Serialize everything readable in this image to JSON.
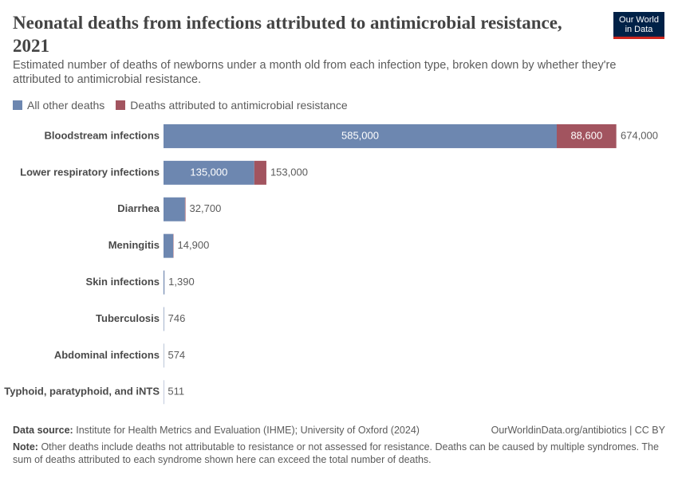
{
  "chart_data": {
    "type": "stacked-bar-horizontal",
    "title": "Neonatal deaths from infections attributed to antimicrobial resistance, 2021",
    "subtitle": "Estimated number of deaths of newborns under a month old from each infection type, broken down by whether they're attributed to antimicrobial resistance.",
    "categories": [
      "Bloodstream infections",
      "Lower respiratory infections",
      "Diarrhea",
      "Meningitis",
      "Skin infections",
      "Tuberculosis",
      "Abdominal infections",
      "Typhoid, paratyphoid, and iNTS"
    ],
    "series": [
      {
        "name": "All other deaths",
        "color": "#6d87b0",
        "values": [
          585000,
          135000,
          31900,
          14400,
          1340,
          720,
          555,
          495
        ],
        "value_labels": [
          "585,000",
          "135,000",
          null,
          null,
          null,
          null,
          null,
          null
        ]
      },
      {
        "name": "Deaths attributed to antimicrobial resistance",
        "color": "#a2545f",
        "values": [
          88600,
          18000,
          800,
          500,
          50,
          26,
          19,
          16
        ],
        "value_labels": [
          "88,600",
          null,
          null,
          null,
          null,
          null,
          null,
          null
        ]
      }
    ],
    "totals": [
      674000,
      153000,
      32700,
      14900,
      1390,
      746,
      574,
      511
    ],
    "total_labels": [
      "674,000",
      "153,000",
      "32,700",
      "14,900",
      "1,390",
      "746",
      "574",
      "511"
    ]
  },
  "logo": {
    "line1": "Our World",
    "line2": "in Data"
  },
  "source": {
    "label": "Data source:",
    "text": "Institute for Health Metrics and Evaluation (IHME); University of Oxford (2024)",
    "link": "OurWorldinData.org/antibiotics | CC BY"
  },
  "note": {
    "label": "Note:",
    "text": "Other deaths include deaths not attributable to resistance or not assessed for resistance. Deaths can be caused by multiple syndromes. The sum of deaths attributed to each syndrome shown here can exceed the total number of deaths."
  }
}
